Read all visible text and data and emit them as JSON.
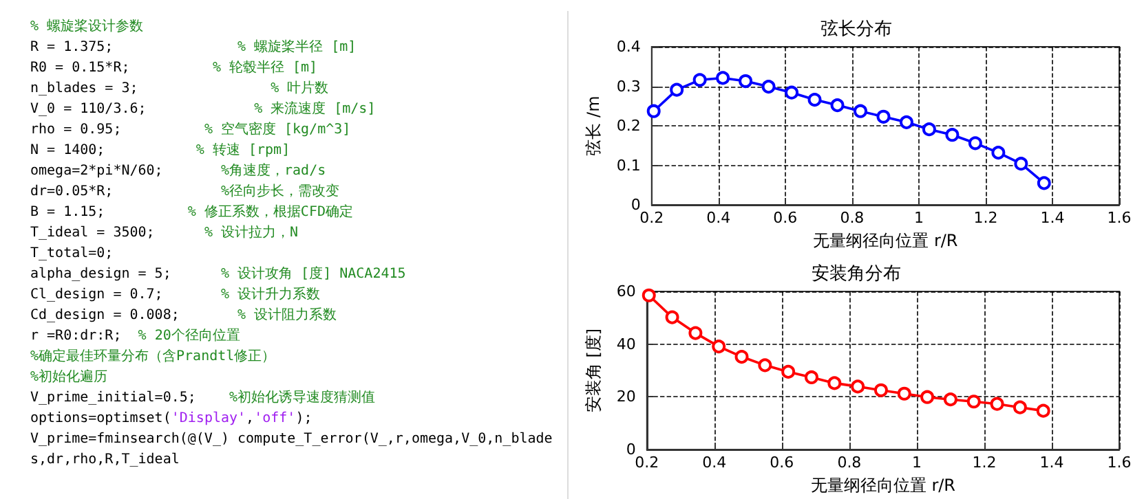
{
  "chart_data": [
    {
      "type": "other",
      "annotations": [
        "% 螺旋桨设计参数",
        "R = 1.375;               % 螺旋桨半径 [m]",
        "R0 = 0.15*R;          % 轮毂半径 [m]",
        "n_blades = 3;                % 叶片数",
        "V_0 = 110/3.6;             % 来流速度 [m/s]",
        "rho = 0.95;          % 空气密度 [kg/m^3]",
        "N = 1400;           % 转速 [rpm]",
        "omega=2*pi*N/60;       %角速度，rad/s",
        "dr=0.05*R;             %径向步长，需改变",
        "B = 1.15;          % 修正系数，根据CFD确定",
        "T_ideal = 3500;      % 设计拉力，N",
        "T_total=0;",
        "alpha_design = 5;      % 设计攻角 [度] NACA2415",
        "Cl_design = 0.7;       % 设计升力系数",
        "Cd_design = 0.008;       % 设计阻力系数",
        "r =R0:dr:R;  % 20个径向位置",
        "%确定最佳环量分布（含Prandtl修正）",
        "%初始化遍历",
        "V_prime_initial=0.5;    %初始化诱导速度猜测值",
        "options=optimset('Display','off');",
        "V_prime=fminsearch(@(V_) compute_T_error(V_,r,omega,V_0,n_blades,dr,rho,R,T_ideal"
      ]
    },
    {
      "type": "line",
      "title": "弦长分布",
      "xlabel": "无量纲径向位置 r/R",
      "ylabel": "弦长 /m",
      "x": [
        0.206,
        0.275,
        0.344,
        0.413,
        0.481,
        0.55,
        0.619,
        0.688,
        0.756,
        0.825,
        0.894,
        0.963,
        1.031,
        1.1,
        1.169,
        1.238,
        1.306,
        1.375
      ],
      "series": [
        {
          "color": "#0000ff",
          "values": [
            0.237,
            0.291,
            0.316,
            0.321,
            0.313,
            0.299,
            0.284,
            0.266,
            0.252,
            0.237,
            0.223,
            0.209,
            0.191,
            0.177,
            0.156,
            0.132,
            0.104,
            0.055
          ]
        }
      ],
      "xlim": [
        0.2,
        1.6
      ],
      "xticks": [
        0.2,
        0.4,
        0.6,
        0.8,
        1,
        1.2,
        1.4,
        1.6
      ],
      "ylim": [
        0,
        0.4
      ],
      "yticks": [
        0,
        0.1,
        0.2,
        0.3,
        0.4
      ],
      "grid": true,
      "marker": "circle",
      "line_style": "solid"
    },
    {
      "type": "line",
      "title": "安装角分布",
      "xlabel": "无量纲径向位置 r/R",
      "ylabel": "安装角 [度]",
      "x": [
        0.206,
        0.275,
        0.344,
        0.413,
        0.481,
        0.55,
        0.619,
        0.688,
        0.756,
        0.825,
        0.894,
        0.963,
        1.031,
        1.1,
        1.169,
        1.238,
        1.306,
        1.375
      ],
      "series": [
        {
          "color": "#ff0000",
          "values": [
            58.5,
            50.2,
            44.2,
            39.1,
            35.2,
            32.0,
            29.5,
            27.4,
            25.2,
            23.9,
            22.5,
            21.2,
            19.9,
            19.0,
            18.2,
            17.3,
            16.0,
            14.7
          ]
        }
      ],
      "xlim": [
        0.2,
        1.6
      ],
      "xticks": [
        0.2,
        0.4,
        0.6,
        0.8,
        1,
        1.2,
        1.4,
        1.6
      ],
      "ylim": [
        0,
        60
      ],
      "yticks": [
        0,
        20,
        40,
        60
      ],
      "grid": true,
      "marker": "circle",
      "line_style": "solid"
    }
  ]
}
